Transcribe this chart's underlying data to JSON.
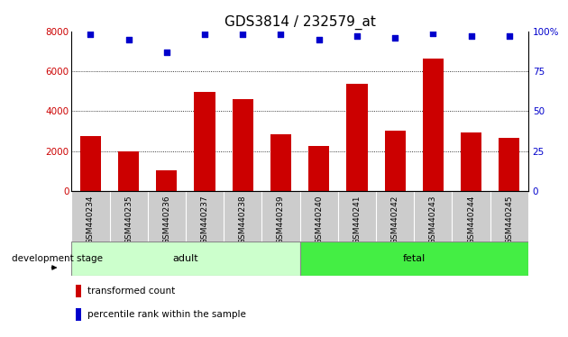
{
  "title": "GDS3814 / 232579_at",
  "categories": [
    "GSM440234",
    "GSM440235",
    "GSM440236",
    "GSM440237",
    "GSM440238",
    "GSM440239",
    "GSM440240",
    "GSM440241",
    "GSM440242",
    "GSM440243",
    "GSM440244",
    "GSM440245"
  ],
  "bar_values": [
    2750,
    2000,
    1050,
    4950,
    4600,
    2850,
    2250,
    5350,
    3000,
    6650,
    2950,
    2650
  ],
  "bar_color": "#cc0000",
  "percentile_values": [
    98,
    95,
    87,
    98,
    98,
    98,
    95,
    97,
    96,
    99,
    97,
    97
  ],
  "percentile_color": "#0000cc",
  "ylim_left": [
    0,
    8000
  ],
  "ylim_right": [
    0,
    100
  ],
  "yticks_left": [
    0,
    2000,
    4000,
    6000,
    8000
  ],
  "ytick_labels_right": [
    "0",
    "25",
    "50",
    "75",
    "100%"
  ],
  "yticks_right": [
    0,
    25,
    50,
    75,
    100
  ],
  "grid_values": [
    2000,
    4000,
    6000
  ],
  "adult_color": "#ccffcc",
  "fetal_color": "#44ee44",
  "group_label_adult": "adult",
  "group_label_fetal": "fetal",
  "development_stage_label": "development stage",
  "legend_bar_label": "transformed count",
  "legend_dot_label": "percentile rank within the sample",
  "bar_width": 0.55,
  "bg_color": "#ffffff",
  "axis_color_left": "#cc0000",
  "axis_color_right": "#0000cc",
  "tick_area_color": "#cccccc",
  "title_fontsize": 11,
  "tick_fontsize": 6.5,
  "legend_fontsize": 7.5,
  "group_fontsize": 8,
  "dev_stage_fontsize": 7.5
}
